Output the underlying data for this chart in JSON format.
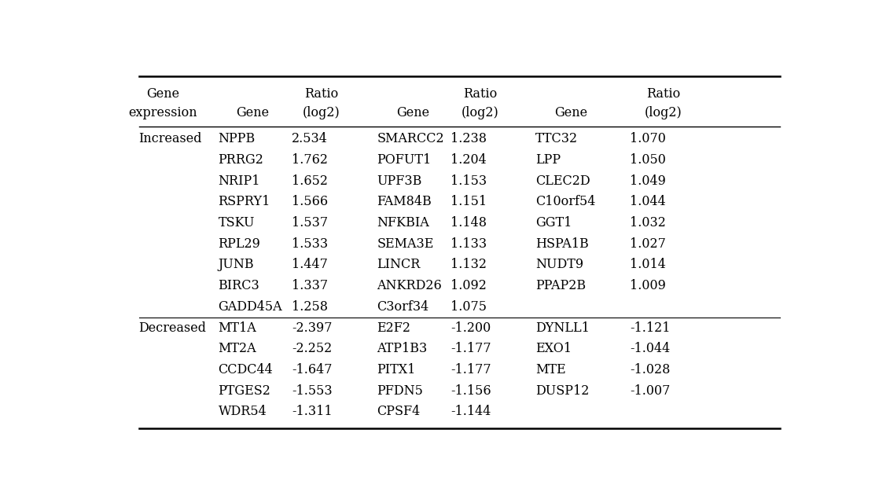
{
  "rows": [
    [
      "Increased",
      "NPPB",
      "2.534",
      "SMARCC2",
      "1.238",
      "TTC32",
      "1.070"
    ],
    [
      "",
      "PRRG2",
      "1.762",
      "POFUT1",
      "1.204",
      "LPP",
      "1.050"
    ],
    [
      "",
      "NRIP1",
      "1.652",
      "UPF3B",
      "1.153",
      "CLEC2D",
      "1.049"
    ],
    [
      "",
      "RSPRY1",
      "1.566",
      "FAM84B",
      "1.151",
      "C10orf54",
      "1.044"
    ],
    [
      "",
      "TSKU",
      "1.537",
      "NFKBIA",
      "1.148",
      "GGT1",
      "1.032"
    ],
    [
      "",
      "RPL29",
      "1.533",
      "SEMA3E",
      "1.133",
      "HSPA1B",
      "1.027"
    ],
    [
      "",
      "JUNB",
      "1.447",
      "LINCR",
      "1.132",
      "NUDT9",
      "1.014"
    ],
    [
      "",
      "BIRC3",
      "1.337",
      "ANKRD26",
      "1.092",
      "PPAP2B",
      "1.009"
    ],
    [
      "",
      "GADD45A",
      "1.258",
      "C3orf34",
      "1.075",
      "",
      ""
    ],
    [
      "Decreased",
      "MT1A",
      "-2.397",
      "E2F2",
      "-1.200",
      "DYNLL1",
      "-1.121"
    ],
    [
      "",
      "MT2A",
      "-2.252",
      "ATP1B3",
      "-1.177",
      "EXO1",
      "-1.044"
    ],
    [
      "",
      "CCDC44",
      "-1.647",
      "PITX1",
      "-1.177",
      "MTE",
      "-1.028"
    ],
    [
      "",
      "PTGES2",
      "-1.553",
      "PFDN5",
      "-1.156",
      "DUSP12",
      "-1.007"
    ],
    [
      "",
      "WDR54",
      "-1.311",
      "CPSF4",
      "-1.144",
      "",
      ""
    ]
  ],
  "header_line1": [
    "Gene",
    "",
    "Ratio",
    "",
    "Ratio",
    "",
    "Ratio"
  ],
  "header_line2": [
    "expression",
    "Gene",
    "(log2)",
    "Gene",
    "(log2)",
    "Gene",
    "(log2)"
  ],
  "figsize": [
    11.32,
    6.26
  ],
  "dpi": 100,
  "font_size": 11.5,
  "background_color": "#ffffff",
  "text_color": "#000000",
  "line_color": "#000000",
  "font_family": "DejaVu Serif"
}
